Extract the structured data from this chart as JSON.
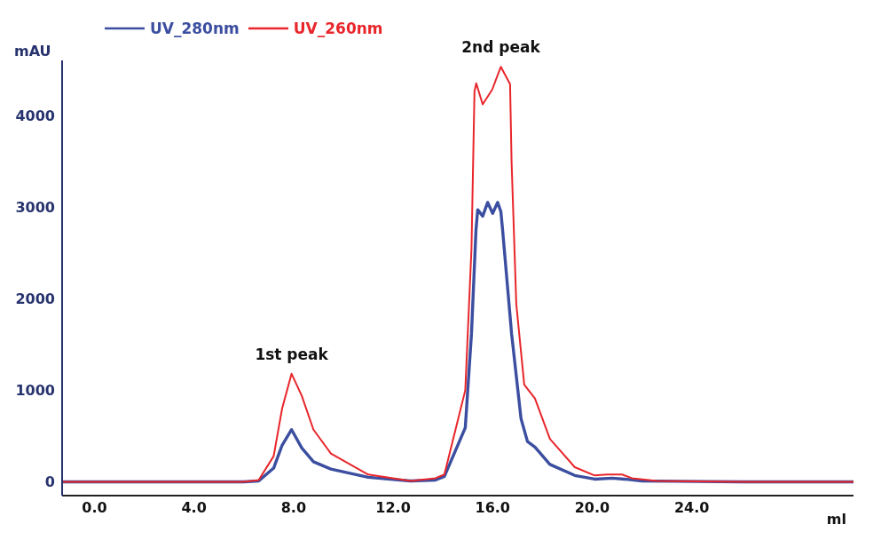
{
  "chart_data": {
    "type": "line",
    "xlabel": "ml",
    "ylabel": "mAU",
    "xlim": [
      -1.3,
      30.5
    ],
    "xticks": [
      {
        "value": 0,
        "label": "0.0"
      },
      {
        "value": 4,
        "label": "4.0"
      },
      {
        "value": 8,
        "label": "8.0"
      },
      {
        "value": 12,
        "label": "12.0"
      },
      {
        "value": 16,
        "label": "16.0"
      },
      {
        "value": 20,
        "label": "20.0"
      },
      {
        "value": 24,
        "label": "24.0"
      }
    ],
    "ylim": [
      -150,
      4600
    ],
    "yticks": [
      0,
      1000,
      2000,
      3000,
      4000
    ],
    "grid": false,
    "legend": "top left",
    "marker": "none",
    "line_style": "solid",
    "annotations": [
      {
        "text": "1st peak",
        "x": 7.92,
        "y": 1180
      },
      {
        "text": "2nd peak",
        "x": 16.33,
        "y": 4530
      }
    ],
    "series": [
      {
        "name": "UV_280nm",
        "color": "#3b4ea0",
        "x": [
          -1.3,
          6.0,
          6.6,
          7.2,
          7.54,
          7.92,
          8.33,
          8.8,
          9.5,
          11.0,
          12.7,
          13.7,
          14.06,
          14.9,
          15.15,
          15.33,
          15.4,
          15.6,
          15.8,
          16.0,
          16.2,
          16.33,
          16.4,
          16.76,
          17.14,
          17.4,
          17.7,
          18.3,
          19.3,
          20.1,
          20.8,
          21.3,
          22.0,
          26.0,
          30.5
        ],
        "values": [
          0,
          0,
          10,
          150,
          400,
          570,
          370,
          220,
          140,
          50,
          10,
          20,
          60,
          590,
          1620,
          2750,
          2970,
          2900,
          3050,
          2930,
          3050,
          2950,
          2750,
          1620,
          690,
          440,
          380,
          190,
          70,
          30,
          40,
          30,
          10,
          0,
          0
        ]
      },
      {
        "name": "UV_260nm",
        "color": "#e8262b",
        "x": [
          -1.3,
          6.0,
          6.6,
          7.2,
          7.54,
          7.92,
          8.33,
          8.8,
          9.5,
          11.0,
          12.7,
          13.7,
          14.06,
          14.9,
          15.15,
          15.27,
          15.34,
          15.6,
          15.98,
          16.33,
          16.7,
          16.76,
          16.95,
          17.27,
          17.7,
          18.3,
          19.3,
          20.1,
          20.6,
          21.2,
          21.6,
          22.6,
          26.0,
          30.5
        ],
        "values": [
          0,
          0,
          20,
          280,
          800,
          1180,
          940,
          570,
          310,
          80,
          10,
          40,
          80,
          1000,
          2550,
          4260,
          4350,
          4120,
          4280,
          4530,
          4340,
          3500,
          1940,
          1060,
          910,
          470,
          160,
          70,
          80,
          80,
          40,
          10,
          0,
          0
        ]
      }
    ]
  }
}
